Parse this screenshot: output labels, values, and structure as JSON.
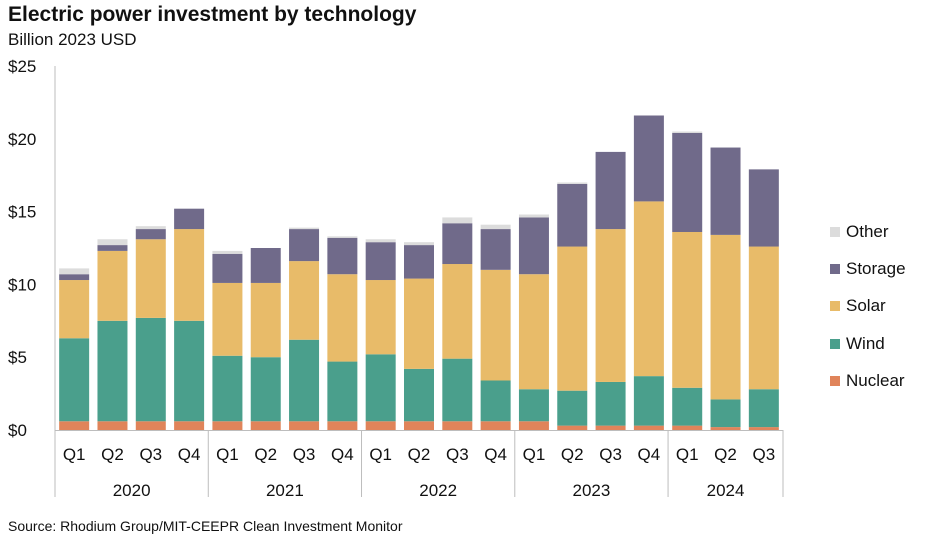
{
  "title": "Electric power investment by technology",
  "subtitle": "Billion 2023 USD",
  "source": "Source: Rhodium Group/MIT-CEEPR Clean Investment Monitor",
  "chart_data": {
    "type": "bar",
    "stacked": true,
    "title": "Electric power investment by technology",
    "ylabel": "Billion 2023 USD",
    "ylim": [
      0,
      25
    ],
    "yticks": [
      0,
      5,
      10,
      15,
      20,
      25
    ],
    "ytick_labels": [
      "$0",
      "$5",
      "$10",
      "$15",
      "$20",
      "$25"
    ],
    "categories": [
      "Q1",
      "Q2",
      "Q3",
      "Q4",
      "Q1",
      "Q2",
      "Q3",
      "Q4",
      "Q1",
      "Q2",
      "Q3",
      "Q4",
      "Q1",
      "Q2",
      "Q3",
      "Q4",
      "Q1",
      "Q2",
      "Q3"
    ],
    "groups": [
      {
        "label": "2020",
        "start": 0,
        "count": 4
      },
      {
        "label": "2021",
        "start": 4,
        "count": 4
      },
      {
        "label": "2022",
        "start": 8,
        "count": 4
      },
      {
        "label": "2023",
        "start": 12,
        "count": 4
      },
      {
        "label": "2024",
        "start": 16,
        "count": 3
      }
    ],
    "series": [
      {
        "name": "Nuclear",
        "color": "#e0845a",
        "values": [
          0.6,
          0.6,
          0.6,
          0.6,
          0.6,
          0.6,
          0.6,
          0.6,
          0.6,
          0.6,
          0.6,
          0.6,
          0.6,
          0.3,
          0.3,
          0.3,
          0.3,
          0.2,
          0.2
        ]
      },
      {
        "name": "Wind",
        "color": "#4a9f8c",
        "values": [
          5.7,
          6.9,
          7.1,
          6.9,
          4.5,
          4.4,
          5.6,
          4.1,
          4.6,
          3.6,
          4.3,
          2.8,
          2.2,
          2.4,
          3.0,
          3.4,
          2.6,
          1.9,
          2.6
        ]
      },
      {
        "name": "Solar",
        "color": "#e8bb69",
        "values": [
          4.0,
          4.8,
          5.4,
          6.3,
          5.0,
          5.1,
          5.4,
          6.0,
          5.1,
          6.2,
          6.5,
          7.6,
          7.9,
          9.9,
          10.5,
          12.0,
          10.7,
          11.3,
          9.8
        ]
      },
      {
        "name": "Storage",
        "color": "#706a8a",
        "values": [
          0.4,
          0.4,
          0.7,
          1.4,
          2.0,
          2.4,
          2.2,
          2.5,
          2.6,
          2.3,
          2.8,
          2.8,
          3.9,
          4.3,
          5.3,
          5.9,
          6.8,
          6.0,
          5.3
        ]
      },
      {
        "name": "Other",
        "color": "#dcdcdc",
        "values": [
          0.4,
          0.4,
          0.2,
          0.0,
          0.2,
          0.0,
          0.1,
          0.1,
          0.2,
          0.2,
          0.4,
          0.3,
          0.2,
          0.1,
          0.0,
          0.0,
          0.1,
          0.0,
          0.0
        ]
      }
    ],
    "legend_order": [
      "Other",
      "Storage",
      "Solar",
      "Wind",
      "Nuclear"
    ],
    "legend_position": "right",
    "grid": false
  }
}
